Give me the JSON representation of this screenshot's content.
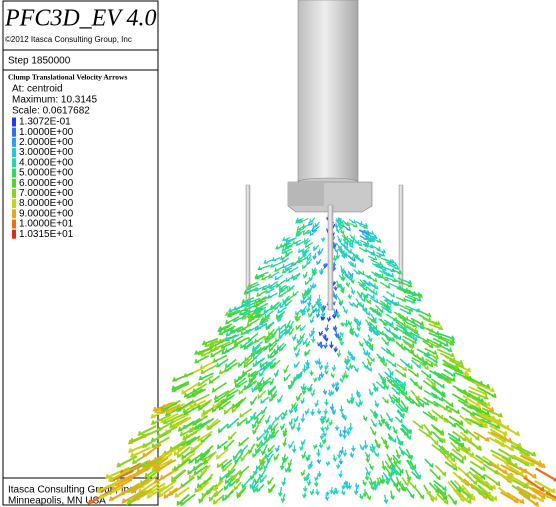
{
  "header": {
    "title": "PFC3D_EV 4.0",
    "copyright": "©2012 Itasca Consulting Group, Inc"
  },
  "step": "Step 1850000",
  "plot_info": {
    "heading": "Clump Translational Velocity Arrows",
    "location": "At: centroid",
    "maximum": "Maximum: 10.3145",
    "scale": "Scale: 0.0617682"
  },
  "legend": [
    {
      "label": "1.3072E-01",
      "color": "#1f3df0"
    },
    {
      "label": "1.0000E+00",
      "color": "#2f6ff5"
    },
    {
      "label": "2.0000E+00",
      "color": "#2fa0ee"
    },
    {
      "label": "3.0000E+00",
      "color": "#26c8d8"
    },
    {
      "label": "4.0000E+00",
      "color": "#22d8a8"
    },
    {
      "label": "5.0000E+00",
      "color": "#2fd860"
    },
    {
      "label": "6.0000E+00",
      "color": "#52d42c"
    },
    {
      "label": "7.0000E+00",
      "color": "#8cd41e"
    },
    {
      "label": "8.0000E+00",
      "color": "#c8d41a"
    },
    {
      "label": "9.0000E+00",
      "color": "#e8aa1c"
    },
    {
      "label": "1.0000E+01",
      "color": "#e6701e"
    },
    {
      "label": "1.0315E+01",
      "color": "#d8301e"
    }
  ],
  "footer": {
    "line1": "Itasca Consulting Group, Inc.",
    "line2": "Minneapolis, MN  USA"
  }
}
